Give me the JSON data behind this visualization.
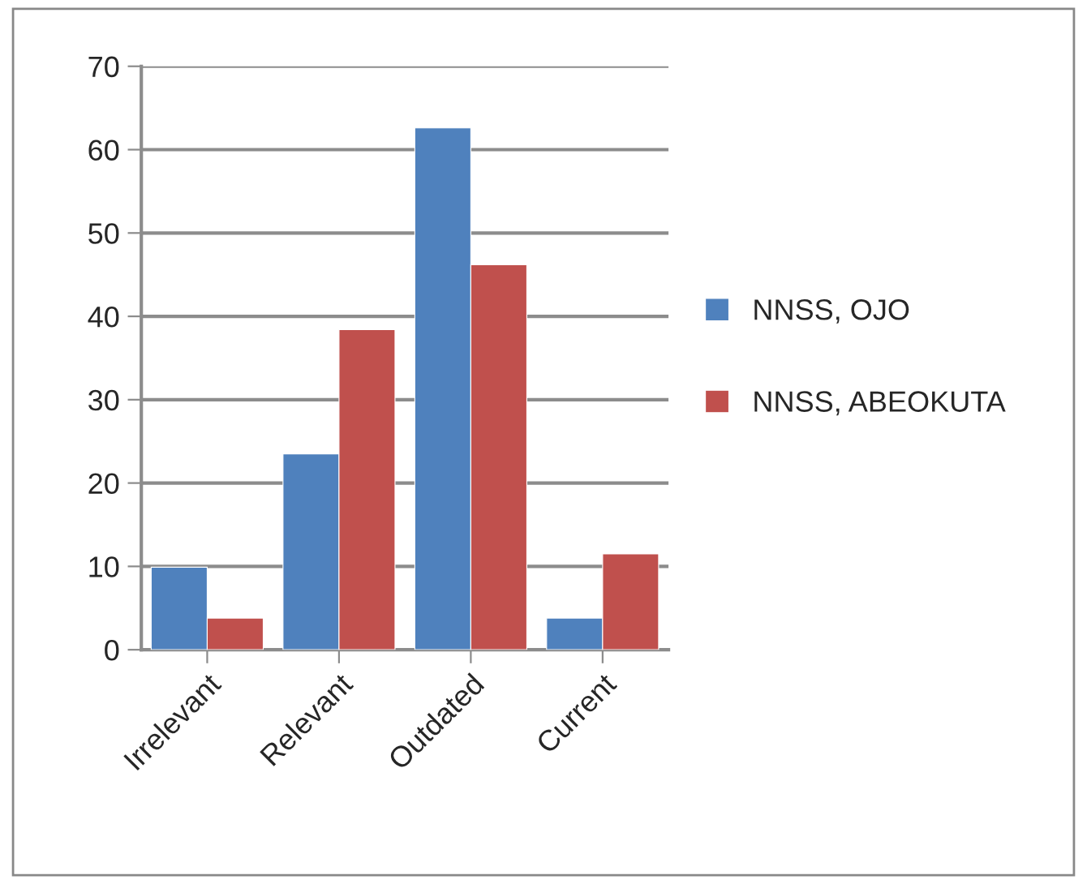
{
  "chart_data": {
    "type": "bar",
    "categories": [
      "Irrelevant",
      "Relevant",
      "Outdated",
      "Current"
    ],
    "series": [
      {
        "name": "NNSS, OJO",
        "color": "#4f81bd",
        "values": [
          9.9,
          23.5,
          62.6,
          3.8
        ]
      },
      {
        "name": "NNSS, ABEOKUTA",
        "color": "#c0504d",
        "values": [
          3.8,
          38.4,
          46.2,
          11.5
        ]
      }
    ],
    "ylim": [
      0,
      70
    ],
    "yticks": [
      0,
      10,
      20,
      30,
      40,
      50,
      60,
      70
    ],
    "grid": "y",
    "legend": "right"
  }
}
